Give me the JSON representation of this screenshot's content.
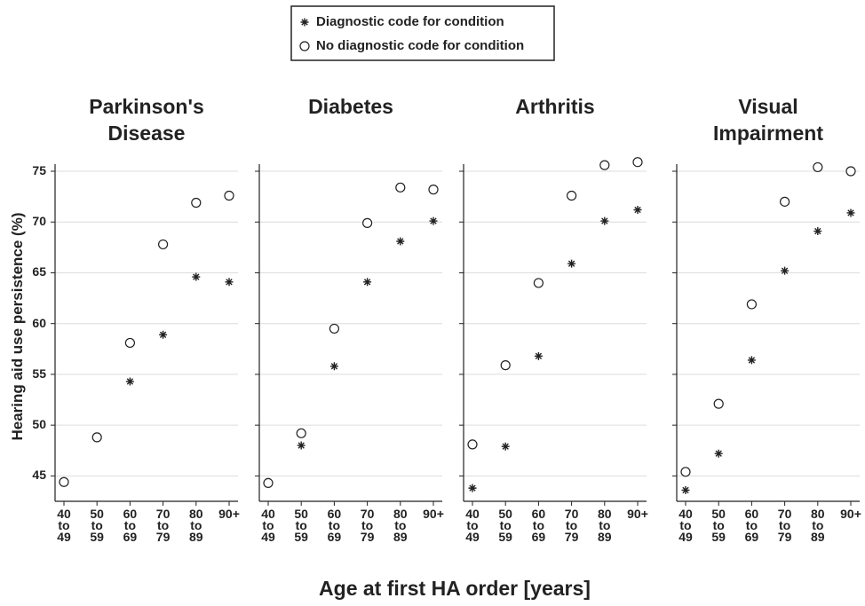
{
  "legend": [
    {
      "name": "Diagnostic code for condition",
      "marker": "asterisk"
    },
    {
      "name": "No diagnostic code for condition",
      "marker": "circle"
    }
  ],
  "ylabel": "Hearing aid use persistence (%)",
  "xlabel": "Age at first HA order [years]",
  "chart_data": [
    {
      "type": "scatter",
      "title": "Parkinson's Disease",
      "categories": [
        "40 to 49",
        "50 to 59",
        "60 to 69",
        "70 to 79",
        "80 to 89",
        "90+"
      ],
      "series": [
        {
          "marker": "asterisk",
          "values": [
            null,
            null,
            54.3,
            58.9,
            64.6,
            64.1
          ]
        },
        {
          "marker": "circle",
          "values": [
            44.4,
            48.8,
            58.1,
            67.8,
            71.9,
            72.6
          ]
        }
      ],
      "ylim": [
        42.5,
        75.7
      ],
      "yticks": [
        45,
        50,
        55,
        60,
        65,
        70,
        75
      ],
      "show_ytick_labels": true,
      "grid": true
    },
    {
      "type": "scatter",
      "title": "Diabetes",
      "categories": [
        "40 to 49",
        "50 to 59",
        "60 to 69",
        "70 to 79",
        "80 to 89",
        "90+"
      ],
      "series": [
        {
          "marker": "asterisk",
          "values": [
            44.4,
            48.0,
            55.8,
            64.1,
            68.1,
            70.1
          ]
        },
        {
          "marker": "circle",
          "values": [
            44.3,
            49.2,
            59.5,
            69.9,
            73.4,
            73.2
          ]
        }
      ],
      "ylim": [
        42.5,
        75.7
      ],
      "yticks": [
        45,
        50,
        55,
        60,
        65,
        70,
        75
      ],
      "show_ytick_labels": false,
      "grid": true
    },
    {
      "type": "scatter",
      "title": "Arthritis",
      "categories": [
        "40 to 49",
        "50 to 59",
        "60 to 69",
        "70 to 79",
        "80 to 89",
        "90+"
      ],
      "series": [
        {
          "marker": "asterisk",
          "values": [
            43.8,
            47.9,
            56.8,
            65.9,
            70.1,
            71.2
          ]
        },
        {
          "marker": "circle",
          "values": [
            48.1,
            55.9,
            64.0,
            72.6,
            75.6,
            75.9
          ]
        }
      ],
      "ylim": [
        42.5,
        75.7
      ],
      "yticks": [
        45,
        50,
        55,
        60,
        65,
        70,
        75
      ],
      "show_ytick_labels": false,
      "grid": true
    },
    {
      "type": "scatter",
      "title": "Visual Impairment",
      "categories": [
        "40 to 49",
        "50 to 59",
        "60 to 69",
        "70 to 79",
        "80 to 89",
        "90+"
      ],
      "series": [
        {
          "marker": "asterisk",
          "values": [
            43.6,
            47.2,
            56.4,
            65.2,
            69.1,
            70.9
          ]
        },
        {
          "marker": "circle",
          "values": [
            45.4,
            52.1,
            61.9,
            72.0,
            75.4,
            75.0
          ]
        }
      ],
      "ylim": [
        42.5,
        75.7
      ],
      "yticks": [
        45,
        50,
        55,
        60,
        65,
        70,
        75
      ],
      "show_ytick_labels": false,
      "grid": true
    }
  ]
}
